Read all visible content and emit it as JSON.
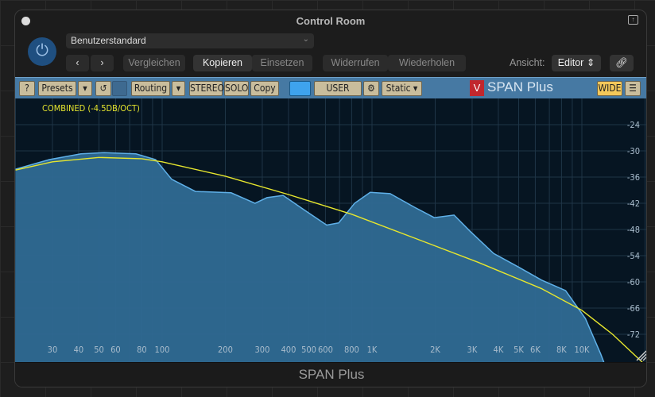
{
  "window": {
    "title": "Control Room",
    "footer": "SPAN Plus"
  },
  "header": {
    "preset": "Benutzerstandard",
    "compare": "Vergleichen",
    "copy": "Kopieren",
    "paste": "Einsetzen",
    "undo": "Widerrufen",
    "redo": "Wiederholen",
    "view_label": "Ansicht:",
    "view_value": "Editor"
  },
  "toolbar": {
    "help": "?",
    "presets": "Presets",
    "routing": "Routing",
    "stereo": "STEREO",
    "solo": "SOLO",
    "copy": "Copy",
    "user": "USER",
    "static": "Static ▾",
    "brand": "SPAN Plus",
    "wide": "WIDE",
    "accent": "#4679a3"
  },
  "chart_data": {
    "type": "area",
    "annotation": "COMBINED (-4.5DB/OCT)",
    "x_scale": "log",
    "xlim": [
      20,
      20000
    ],
    "ylim": [
      -80,
      -19
    ],
    "x_ticks": [
      {
        "v": 30,
        "l": "30"
      },
      {
        "v": 40,
        "l": "40"
      },
      {
        "v": 50,
        "l": "50"
      },
      {
        "v": 60,
        "l": "60"
      },
      {
        "v": 80,
        "l": "80"
      },
      {
        "v": 100,
        "l": "100"
      },
      {
        "v": 200,
        "l": "200"
      },
      {
        "v": 300,
        "l": "300"
      },
      {
        "v": 400,
        "l": "400"
      },
      {
        "v": 500,
        "l": "500"
      },
      {
        "v": 600,
        "l": "600"
      },
      {
        "v": 800,
        "l": "800"
      },
      {
        "v": 1000,
        "l": "1K"
      },
      {
        "v": 2000,
        "l": "2K"
      },
      {
        "v": 3000,
        "l": "3K"
      },
      {
        "v": 4000,
        "l": "4K"
      },
      {
        "v": 5000,
        "l": "5K"
      },
      {
        "v": 6000,
        "l": "6K"
      },
      {
        "v": 8000,
        "l": "8K"
      },
      {
        "v": 10000,
        "l": "10K"
      }
    ],
    "y_ticks": [
      -24,
      -30,
      -36,
      -42,
      -48,
      -54,
      -60,
      -66,
      -72
    ],
    "grid": true,
    "series": [
      {
        "color": "#5fb0e8",
        "fill": "#2f6a93",
        "points": [
          [
            20,
            -34.2
          ],
          [
            29,
            -32
          ],
          [
            41,
            -30.7
          ],
          [
            53,
            -30.4
          ],
          [
            75,
            -30.7
          ],
          [
            93,
            -32
          ],
          [
            111,
            -36.5
          ],
          [
            144,
            -39.3
          ],
          [
            213,
            -39.6
          ],
          [
            277,
            -42
          ],
          [
            316,
            -40.7
          ],
          [
            377,
            -40.2
          ],
          [
            468,
            -43.3
          ],
          [
            608,
            -47
          ],
          [
            693,
            -46.5
          ],
          [
            826,
            -42
          ],
          [
            980,
            -39.5
          ],
          [
            1220,
            -39.8
          ],
          [
            1590,
            -42.9
          ],
          [
            1980,
            -45.3
          ],
          [
            2460,
            -44.7
          ],
          [
            2930,
            -48.4
          ],
          [
            3800,
            -53.5
          ],
          [
            4950,
            -56.5
          ],
          [
            6430,
            -59.6
          ],
          [
            8360,
            -62
          ],
          [
            10400,
            -68.4
          ],
          [
            12300,
            -76.5
          ],
          [
            13100,
            -80
          ]
        ]
      },
      {
        "color": "#e6e62e",
        "points": [
          [
            20,
            -34.4
          ],
          [
            30,
            -32.5
          ],
          [
            50,
            -31.5
          ],
          [
            80,
            -31.8
          ],
          [
            100,
            -32.5
          ],
          [
            200,
            -35.8
          ],
          [
            400,
            -40
          ],
          [
            800,
            -44.5
          ],
          [
            1600,
            -50
          ],
          [
            3200,
            -55.5
          ],
          [
            6400,
            -61.5
          ],
          [
            10000,
            -66.5
          ],
          [
            14000,
            -72
          ],
          [
            20000,
            -79
          ]
        ]
      }
    ]
  }
}
